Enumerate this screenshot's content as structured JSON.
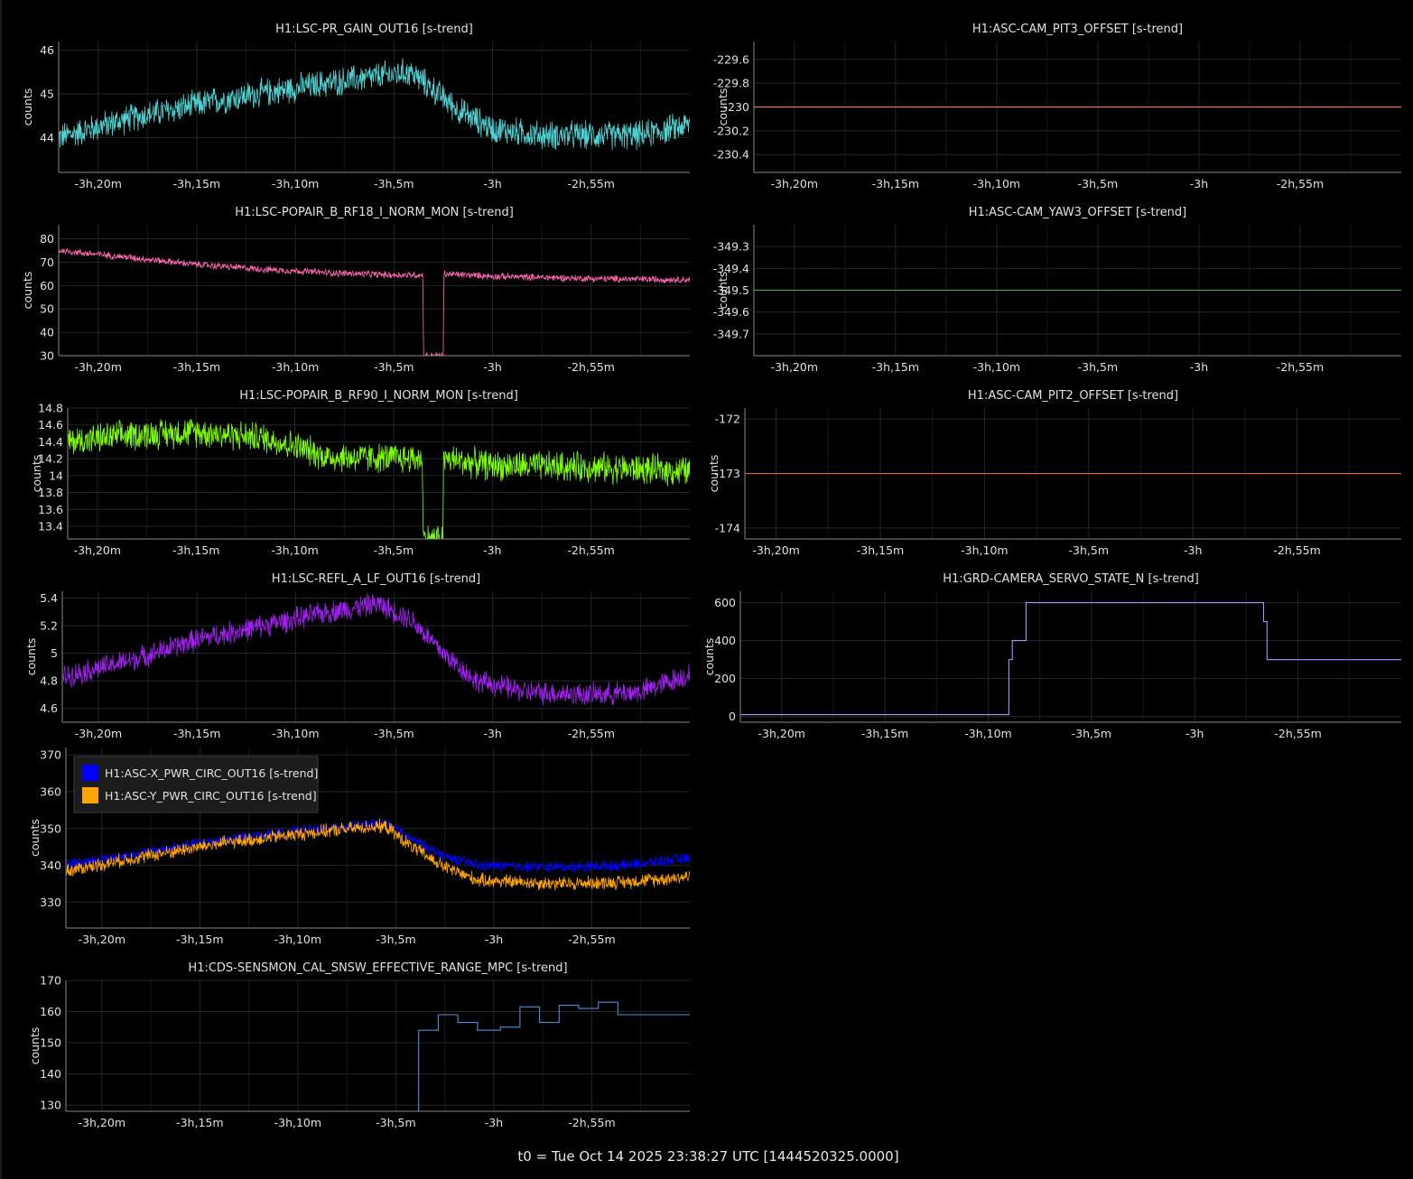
{
  "footer": "t0 = Tue Oct 14 2025 23:38:27 UTC [1444520325.0000]",
  "chart_data": [
    {
      "type": "line",
      "title": "H1:LSC-PR_GAIN_OUT16 [s-trend]",
      "ylabel": "counts",
      "xlim": [
        -12120,
        -10200
      ],
      "ylim": [
        43.2,
        46.2
      ],
      "x_tick_values": [
        -12000,
        -11700,
        -11400,
        -11100,
        -10800,
        -10500
      ],
      "x_tick_labels": [
        "-3h,20m",
        "-3h,15m",
        "-3h,10m",
        "-3h,5m",
        "-3h",
        "-2h,55m"
      ],
      "y_ticks": [
        44,
        45,
        46
      ],
      "y_tick_labels": [
        "44",
        "45",
        "46"
      ],
      "grid": true,
      "series": [
        {
          "color": "#4fd2d2",
          "noise": 0.55,
          "points": [
            [
              -12120,
              44.0
            ],
            [
              -11900,
              44.45
            ],
            [
              -11600,
              44.9
            ],
            [
              -11300,
              45.25
            ],
            [
              -11050,
              45.5
            ],
            [
              -10980,
              45.1
            ],
            [
              -10900,
              44.6
            ],
            [
              -10800,
              44.2
            ],
            [
              -10650,
              44.05
            ],
            [
              -10500,
              44.05
            ],
            [
              -10350,
              44.05
            ],
            [
              -10200,
              44.3
            ]
          ]
        }
      ]
    },
    {
      "type": "line",
      "title": "H1:ASC-CAM_PIT3_OFFSET [s-trend]",
      "ylabel": "counts",
      "xlim": [
        -12120,
        -10200
      ],
      "ylim": [
        -230.55,
        -229.45
      ],
      "x_tick_values": [
        -12000,
        -11700,
        -11400,
        -11100,
        -10800,
        -10500
      ],
      "x_tick_labels": [
        "-3h,20m",
        "-3h,15m",
        "-3h,10m",
        "-3h,5m",
        "-3h",
        "-2h,55m"
      ],
      "y_ticks": [
        -229.6,
        -229.8,
        -230,
        -230.2,
        -230.4
      ],
      "y_tick_labels": [
        "-229.6",
        "-229.8",
        "-230",
        "-230.2",
        "-230.4"
      ],
      "grid": true,
      "series": [
        {
          "color": "#ff7f50",
          "noise": 0,
          "points": [
            [
              -12120,
              -230
            ],
            [
              -10200,
              -230
            ]
          ]
        }
      ]
    },
    {
      "type": "line",
      "title": "H1:LSC-POPAIR_B_RF18_I_NORM_MON [s-trend]",
      "ylabel": "counts",
      "xlim": [
        -12120,
        -10200
      ],
      "ylim": [
        30,
        86
      ],
      "x_tick_values": [
        -12000,
        -11700,
        -11400,
        -11100,
        -10800,
        -10500
      ],
      "x_tick_labels": [
        "-3h,20m",
        "-3h,15m",
        "-3h,10m",
        "-3h,5m",
        "-3h",
        "-2h,55m"
      ],
      "y_ticks": [
        30,
        40,
        50,
        60,
        70,
        80
      ],
      "y_tick_labels": [
        "30",
        "40",
        "50",
        "60",
        "70",
        "80"
      ],
      "grid": true,
      "series": [
        {
          "color": "#ff69b4",
          "noise": 2.5,
          "points": [
            [
              -12120,
              75
            ],
            [
              -11900,
              72
            ],
            [
              -11700,
              69
            ],
            [
              -11500,
              67
            ],
            [
              -11300,
              65.5
            ],
            [
              -11100,
              64.5
            ],
            [
              -11012,
              64.5
            ],
            [
              -11010,
              30
            ],
            [
              -10950,
              30
            ],
            [
              -10948,
              65
            ],
            [
              -10800,
              64
            ],
            [
              -10500,
              63
            ],
            [
              -10200,
              62.5
            ]
          ]
        }
      ]
    },
    {
      "type": "line",
      "title": "H1:ASC-CAM_YAW3_OFFSET [s-trend]",
      "ylabel": "counts",
      "xlim": [
        -12120,
        -10200
      ],
      "ylim": [
        -349.8,
        -349.2
      ],
      "x_tick_values": [
        -12000,
        -11700,
        -11400,
        -11100,
        -10800,
        -10500
      ],
      "x_tick_labels": [
        "-3h,20m",
        "-3h,15m",
        "-3h,10m",
        "-3h,5m",
        "-3h",
        "-2h,55m"
      ],
      "y_ticks": [
        -349.3,
        -349.4,
        -349.5,
        -349.6,
        -349.7
      ],
      "y_tick_labels": [
        "-349.3",
        "-349.4",
        "-349.5",
        "-349.6",
        "-349.7"
      ],
      "grid": true,
      "series": [
        {
          "color": "#3cb34a",
          "noise": 0,
          "points": [
            [
              -12120,
              -349.5
            ],
            [
              -10200,
              -349.5
            ]
          ]
        }
      ]
    },
    {
      "type": "line",
      "title": "H1:LSC-POPAIR_B_RF90_I_NORM_MON [s-trend]",
      "ylabel": "counts",
      "xlim": [
        -12090,
        -10200
      ],
      "ylim": [
        13.25,
        14.8
      ],
      "x_tick_values": [
        -12000,
        -11700,
        -11400,
        -11100,
        -10800,
        -10500
      ],
      "x_tick_labels": [
        "-3h,20m",
        "-3h,15m",
        "-3h,10m",
        "-3h,5m",
        "-3h",
        "-2h,55m"
      ],
      "y_ticks": [
        13.4,
        13.6,
        13.8,
        14,
        14.2,
        14.4,
        14.6,
        14.8
      ],
      "y_tick_labels": [
        "13.4",
        "13.6",
        "13.8",
        "14",
        "14.2",
        "14.4",
        "14.6",
        "14.8"
      ],
      "grid": true,
      "series": [
        {
          "color": "#7fff00",
          "noise": 0.3,
          "points": [
            [
              -12090,
              14.4
            ],
            [
              -11900,
              14.48
            ],
            [
              -11700,
              14.52
            ],
            [
              -11500,
              14.45
            ],
            [
              -11400,
              14.35
            ],
            [
              -11300,
              14.22
            ],
            [
              -11012,
              14.2
            ],
            [
              -11010,
              13.25
            ],
            [
              -10950,
              13.25
            ],
            [
              -10948,
              14.2
            ],
            [
              -10800,
              14.12
            ],
            [
              -10500,
              14.1
            ],
            [
              -10200,
              14.05
            ]
          ]
        }
      ]
    },
    {
      "type": "line",
      "title": "H1:ASC-CAM_PIT2_OFFSET [s-trend]",
      "ylabel": "counts",
      "xlim": [
        -12090,
        -10200
      ],
      "ylim": [
        -174.2,
        -171.8
      ],
      "x_tick_values": [
        -12000,
        -11700,
        -11400,
        -11100,
        -10800,
        -10500
      ],
      "x_tick_labels": [
        "-3h,20m",
        "-3h,15m",
        "-3h,10m",
        "-3h,5m",
        "-3h",
        "-2h,55m"
      ],
      "y_ticks": [
        -172,
        -173,
        -174
      ],
      "y_tick_labels": [
        "-172",
        "-173",
        "-174"
      ],
      "grid": true,
      "series": [
        {
          "color": "#ff5a2a",
          "noise": 0,
          "points": [
            [
              -12090,
              -173
            ],
            [
              -10200,
              -173
            ]
          ]
        }
      ]
    },
    {
      "type": "line",
      "title": "H1:LSC-REFL_A_LF_OUT16 [s-trend]",
      "ylabel": "counts",
      "xlim": [
        -12110,
        -10200
      ],
      "ylim": [
        4.5,
        5.45
      ],
      "x_tick_values": [
        -12000,
        -11700,
        -11400,
        -11100,
        -10800,
        -10500
      ],
      "x_tick_labels": [
        "-3h,20m",
        "-3h,15m",
        "-3h,10m",
        "-3h,5m",
        "-3h",
        "-2h,55m"
      ],
      "y_ticks": [
        4.6,
        4.8,
        5,
        5.2,
        5.4
      ],
      "y_tick_labels": [
        "4.6",
        "4.8",
        "5",
        "5.2",
        "5.4"
      ],
      "grid": true,
      "series": [
        {
          "color": "#a020f0",
          "noise": 0.14,
          "points": [
            [
              -12110,
              4.83
            ],
            [
              -11900,
              4.95
            ],
            [
              -11700,
              5.1
            ],
            [
              -11500,
              5.2
            ],
            [
              -11300,
              5.3
            ],
            [
              -11150,
              5.36
            ],
            [
              -11050,
              5.25
            ],
            [
              -10950,
              5.0
            ],
            [
              -10850,
              4.8
            ],
            [
              -10700,
              4.72
            ],
            [
              -10500,
              4.7
            ],
            [
              -10350,
              4.72
            ],
            [
              -10200,
              4.85
            ]
          ]
        }
      ]
    },
    {
      "type": "line",
      "title": "H1:GRD-CAMERA_SERVO_STATE_N [s-trend]",
      "ylabel": "counts",
      "xlim": [
        -12120,
        -10200
      ],
      "ylim": [
        -30,
        660
      ],
      "x_tick_values": [
        -12000,
        -11700,
        -11400,
        -11100,
        -10800,
        -10500
      ],
      "x_tick_labels": [
        "-3h,20m",
        "-3h,15m",
        "-3h,10m",
        "-3h,5m",
        "-3h",
        "-2h,55m"
      ],
      "y_ticks": [
        0,
        200,
        400,
        600
      ],
      "y_tick_labels": [
        "0",
        "200",
        "400",
        "600"
      ],
      "grid": true,
      "series": [
        {
          "color": "#b38cff",
          "noise": 0,
          "points": [
            [
              -12120,
              10
            ],
            [
              -11340,
              10
            ],
            [
              -11340,
              300
            ],
            [
              -11330,
              300
            ],
            [
              -11330,
              400
            ],
            [
              -11290,
              400
            ],
            [
              -11290,
              600
            ],
            [
              -10600,
              600
            ],
            [
              -10600,
              500
            ],
            [
              -10590,
              500
            ],
            [
              -10590,
              300
            ],
            [
              -10200,
              300
            ]
          ]
        }
      ]
    },
    {
      "type": "line",
      "title": "",
      "ylabel": "counts",
      "xlim": [
        -12110,
        -10200
      ],
      "ylim": [
        323,
        372
      ],
      "x_tick_values": [
        -12000,
        -11700,
        -11400,
        -11100,
        -10800,
        -10500
      ],
      "x_tick_labels": [
        "-3h,20m",
        "-3h,15m",
        "-3h,10m",
        "-3h,5m",
        "-3h",
        "-2h,55m"
      ],
      "y_ticks": [
        330,
        340,
        350,
        360,
        370
      ],
      "y_tick_labels": [
        "330",
        "340",
        "350",
        "360",
        "370"
      ],
      "grid": true,
      "legend": {
        "position": "top-left"
      },
      "series": [
        {
          "name": "H1:ASC-X_PWR_CIRC_OUT16 [s-trend]",
          "color": "#0000ff",
          "noise": 2.6,
          "points": [
            [
              -12110,
              340.2
            ],
            [
              -11900,
              343
            ],
            [
              -11650,
              346.8
            ],
            [
              -11400,
              349.2
            ],
            [
              -11180,
              351
            ],
            [
              -11130,
              351.5
            ],
            [
              -11050,
              347
            ],
            [
              -10950,
              342.5
            ],
            [
              -10850,
              340
            ],
            [
              -10600,
              339.5
            ],
            [
              -10400,
              340
            ],
            [
              -10200,
              342
            ]
          ]
        },
        {
          "name": "H1:ASC-Y_PWR_CIRC_OUT16 [s-trend]",
          "color": "#ffa500",
          "noise": 3.2,
          "points": [
            [
              -12110,
              338.5
            ],
            [
              -11900,
              342
            ],
            [
              -11650,
              345.8
            ],
            [
              -11400,
              348.5
            ],
            [
              -11180,
              350.5
            ],
            [
              -11130,
              350.5
            ],
            [
              -11050,
              345
            ],
            [
              -10950,
              339.5
            ],
            [
              -10850,
              336
            ],
            [
              -10600,
              335
            ],
            [
              -10400,
              335.5
            ],
            [
              -10200,
              337
            ]
          ]
        }
      ]
    },
    {
      "type": "line",
      "title": "H1:CDS-SENSMON_CAL_SNSW_EFFECTIVE_RANGE_MPC [s-trend]",
      "ylabel": "counts",
      "xlim": [
        -12110,
        -10200
      ],
      "ylim": [
        128,
        170
      ],
      "x_tick_values": [
        -12000,
        -11700,
        -11400,
        -11100,
        -10800,
        -10500
      ],
      "x_tick_labels": [
        "-3h,20m",
        "-3h,15m",
        "-3h,10m",
        "-3h,5m",
        "-3h",
        "-2h,55m"
      ],
      "y_ticks": [
        130,
        140,
        150,
        160,
        170
      ],
      "y_tick_labels": [
        "130",
        "140",
        "150",
        "160",
        "170"
      ],
      "grid": true,
      "series": [
        {
          "color": "#4a90d9",
          "noise": 0,
          "points": [
            [
              -11030,
              128
            ],
            [
              -11030,
              154
            ],
            [
              -10970,
              154
            ],
            [
              -10970,
              159
            ],
            [
              -10910,
              159
            ],
            [
              -10910,
              156.5
            ],
            [
              -10850,
              156.5
            ],
            [
              -10850,
              154
            ],
            [
              -10780,
              154
            ],
            [
              -10780,
              155
            ],
            [
              -10720,
              155
            ],
            [
              -10720,
              161.5
            ],
            [
              -10660,
              161.5
            ],
            [
              -10660,
              156.5
            ],
            [
              -10600,
              156.5
            ],
            [
              -10600,
              162
            ],
            [
              -10540,
              162
            ],
            [
              -10540,
              161
            ],
            [
              -10480,
              161
            ],
            [
              -10480,
              163
            ],
            [
              -10420,
              163
            ],
            [
              -10420,
              159
            ],
            [
              -10300,
              159
            ],
            [
              -10300,
              159
            ],
            [
              -10200,
              159
            ]
          ]
        }
      ]
    }
  ]
}
